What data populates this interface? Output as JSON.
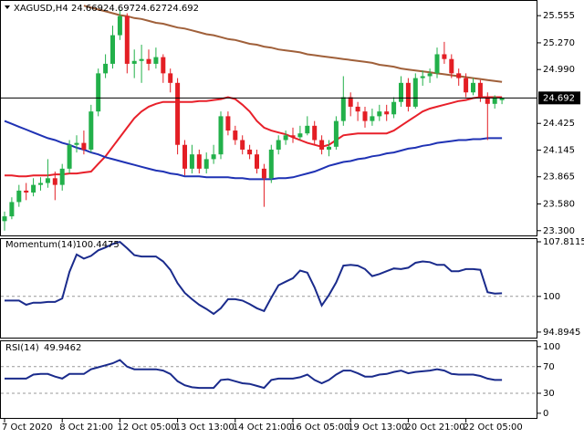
{
  "chart_data": [
    {
      "type": "candlestick",
      "title": "XAGUSD,H4",
      "categories": [
        "7 Oct 2020",
        null,
        null,
        null,
        null,
        null,
        null,
        null,
        "8 Oct 21:00",
        null,
        null,
        null,
        null,
        null,
        null,
        null,
        "12 Oct 05:00",
        null,
        null,
        null,
        null,
        null,
        null,
        null,
        "13 Oct 13:00",
        null,
        null,
        null,
        null,
        null,
        null,
        null,
        "14 Oct 21:00",
        null,
        null,
        null,
        null,
        null,
        null,
        null,
        "16 Oct 05:00",
        null,
        null,
        null,
        null,
        null,
        null,
        null,
        "19 Oct 13:00",
        null,
        null,
        null,
        null,
        null,
        null,
        null,
        "20 Oct 21:00",
        null,
        null,
        null,
        null,
        null,
        null,
        null,
        "22 Oct 05:00",
        null,
        null,
        null,
        null,
        null
      ],
      "candles": [
        [
          23.4,
          23.5,
          23.3,
          23.45
        ],
        [
          23.45,
          23.65,
          23.42,
          23.6
        ],
        [
          23.6,
          23.78,
          23.55,
          23.72
        ],
        [
          23.72,
          23.8,
          23.62,
          23.7
        ],
        [
          23.7,
          23.85,
          23.66,
          23.78
        ],
        [
          23.78,
          23.86,
          23.72,
          23.8
        ],
        [
          23.8,
          24.05,
          23.75,
          23.85
        ],
        [
          23.85,
          23.92,
          23.62,
          23.78
        ],
        [
          23.78,
          24.0,
          23.72,
          23.95
        ],
        [
          23.95,
          24.25,
          23.9,
          24.2
        ],
        [
          24.2,
          24.3,
          24.12,
          24.22
        ],
        [
          24.22,
          24.35,
          24.1,
          24.15
        ],
        [
          24.15,
          24.62,
          24.12,
          24.55
        ],
        [
          24.55,
          25.0,
          24.5,
          24.95
        ],
        [
          24.95,
          25.15,
          24.9,
          25.05
        ],
        [
          25.05,
          25.45,
          25.0,
          25.35
        ],
        [
          25.35,
          25.62,
          25.3,
          25.55
        ],
        [
          25.55,
          25.58,
          24.95,
          25.05
        ],
        [
          25.05,
          25.2,
          24.9,
          25.08
        ],
        [
          25.08,
          25.25,
          24.85,
          25.1
        ],
        [
          25.1,
          25.2,
          24.98,
          25.05
        ],
        [
          25.05,
          25.22,
          25.0,
          25.12
        ],
        [
          25.12,
          25.15,
          24.85,
          24.95
        ],
        [
          24.95,
          25.0,
          24.75,
          24.85
        ],
        [
          24.85,
          24.9,
          24.1,
          24.2
        ],
        [
          24.2,
          24.25,
          23.88,
          23.95
        ],
        [
          23.95,
          24.2,
          23.9,
          24.1
        ],
        [
          24.1,
          24.15,
          23.9,
          23.95
        ],
        [
          23.95,
          24.12,
          23.9,
          24.05
        ],
        [
          24.05,
          24.2,
          24.0,
          24.1
        ],
        [
          24.1,
          24.55,
          24.05,
          24.5
        ],
        [
          24.5,
          24.55,
          24.3,
          24.35
        ],
        [
          24.35,
          24.4,
          24.2,
          24.25
        ],
        [
          24.25,
          24.3,
          24.1,
          24.15
        ],
        [
          24.15,
          24.2,
          24.05,
          24.1
        ],
        [
          24.1,
          24.15,
          23.9,
          23.95
        ],
        [
          23.95,
          24.0,
          23.55,
          23.85
        ],
        [
          23.85,
          24.2,
          23.8,
          24.15
        ],
        [
          24.15,
          24.3,
          24.1,
          24.25
        ],
        [
          24.25,
          24.35,
          24.2,
          24.3
        ],
        [
          24.3,
          24.38,
          24.22,
          24.28
        ],
        [
          24.28,
          24.4,
          24.25,
          24.32
        ],
        [
          24.32,
          24.5,
          24.3,
          24.4
        ],
        [
          24.4,
          24.45,
          24.2,
          24.25
        ],
        [
          24.25,
          24.3,
          24.1,
          24.15
        ],
        [
          24.15,
          24.25,
          24.08,
          24.18
        ],
        [
          24.18,
          24.5,
          24.15,
          24.45
        ],
        [
          24.45,
          24.92,
          24.4,
          24.7
        ],
        [
          24.7,
          24.75,
          24.5,
          24.6
        ],
        [
          24.6,
          24.65,
          24.45,
          24.55
        ],
        [
          24.55,
          24.6,
          24.38,
          24.45
        ],
        [
          24.45,
          24.58,
          24.4,
          24.5
        ],
        [
          24.5,
          24.62,
          24.45,
          24.55
        ],
        [
          24.55,
          24.62,
          24.45,
          24.52
        ],
        [
          24.52,
          24.7,
          24.48,
          24.65
        ],
        [
          24.65,
          24.92,
          24.6,
          24.85
        ],
        [
          24.85,
          24.9,
          24.55,
          24.6
        ],
        [
          24.6,
          24.95,
          24.58,
          24.9
        ],
        [
          24.9,
          24.98,
          24.82,
          24.92
        ],
        [
          24.92,
          25.0,
          24.85,
          24.95
        ],
        [
          24.95,
          25.22,
          24.9,
          25.15
        ],
        [
          25.15,
          25.28,
          25.05,
          25.1
        ],
        [
          25.1,
          25.15,
          24.9,
          24.95
        ],
        [
          24.95,
          25.0,
          24.82,
          24.9
        ],
        [
          24.9,
          24.95,
          24.7,
          24.75
        ],
        [
          24.75,
          24.9,
          24.72,
          24.85
        ],
        [
          24.85,
          24.88,
          24.65,
          24.7
        ],
        [
          24.7,
          24.75,
          24.25,
          24.63
        ],
        [
          24.63,
          24.72,
          24.58,
          24.7
        ],
        [
          24.669,
          24.697,
          24.627,
          24.692
        ]
      ],
      "up_color": "#22b04a",
      "down_color": "#e31e24",
      "lines": [
        {
          "color": "#e8202a",
          "values": [
            23.88,
            23.88,
            23.87,
            23.87,
            23.88,
            23.88,
            23.88,
            23.89,
            23.89,
            23.9,
            23.9,
            23.91,
            23.92,
            24.0,
            24.08,
            24.18,
            24.28,
            24.38,
            24.48,
            24.55,
            24.6,
            24.63,
            24.65,
            24.65,
            24.65,
            24.65,
            24.65,
            24.66,
            24.66,
            24.67,
            24.68,
            24.7,
            24.68,
            24.62,
            24.55,
            24.45,
            24.38,
            24.35,
            24.33,
            24.31,
            24.28,
            24.25,
            24.22,
            24.2,
            24.18,
            24.2,
            24.25,
            24.3,
            24.31,
            24.32,
            24.32,
            24.32,
            24.32,
            24.32,
            24.35,
            24.4,
            24.45,
            24.5,
            24.55,
            24.58,
            24.6,
            24.62,
            24.64,
            24.66,
            24.67,
            24.69,
            24.7,
            24.7,
            24.7,
            24.7
          ]
        },
        {
          "color": "#1f32b4",
          "values": [
            24.45,
            24.42,
            24.39,
            24.36,
            24.33,
            24.3,
            24.27,
            24.25,
            24.22,
            24.2,
            24.17,
            24.15,
            24.12,
            24.1,
            24.07,
            24.05,
            24.03,
            24.01,
            23.99,
            23.97,
            23.95,
            23.93,
            23.92,
            23.9,
            23.89,
            23.87,
            23.87,
            23.87,
            23.86,
            23.86,
            23.86,
            23.86,
            23.85,
            23.85,
            23.84,
            23.84,
            23.84,
            23.84,
            23.85,
            23.85,
            23.86,
            23.88,
            23.9,
            23.92,
            23.95,
            23.98,
            24.0,
            24.02,
            24.03,
            24.05,
            24.06,
            24.08,
            24.09,
            24.11,
            24.12,
            24.14,
            24.16,
            24.17,
            24.19,
            24.2,
            24.22,
            24.23,
            24.24,
            24.25,
            24.25,
            24.26,
            24.26,
            24.27,
            24.27,
            24.27
          ]
        },
        {
          "color": "#a0603a",
          "values": [
            null,
            null,
            null,
            null,
            null,
            null,
            null,
            null,
            null,
            null,
            null,
            25.66,
            25.64,
            25.62,
            25.6,
            25.58,
            25.56,
            25.55,
            25.53,
            25.52,
            25.5,
            25.48,
            25.47,
            25.45,
            25.43,
            25.42,
            25.4,
            25.38,
            25.36,
            25.35,
            25.33,
            25.31,
            25.3,
            25.28,
            25.26,
            25.25,
            25.23,
            25.22,
            25.2,
            25.19,
            25.18,
            25.17,
            25.15,
            25.14,
            25.13,
            25.12,
            25.11,
            25.1,
            25.09,
            25.08,
            25.07,
            25.06,
            25.04,
            25.03,
            25.02,
            25.0,
            24.99,
            24.98,
            24.97,
            24.96,
            24.95,
            24.94,
            24.93,
            24.92,
            24.91,
            24.9,
            24.89,
            24.88,
            24.87,
            24.86
          ]
        }
      ],
      "ylim": [
        23.25,
        25.7
      ],
      "yticks": [
        25.555,
        {
          "value": 25.27,
          "label": "25.270"
        },
        {
          "value": 24.99,
          "label": "24.990"
        },
        24.425,
        24.145,
        23.865,
        {
          "value": 23.58,
          "label": "23.580"
        },
        {
          "value": 23.3,
          "label": "23.300"
        }
      ]
    },
    {
      "type": "line",
      "name": "Momentum(14)",
      "color": "#1a2b8c",
      "values": [
        99.4,
        99.4,
        99.4,
        98.8,
        99.1,
        99.1,
        99.2,
        99.2,
        99.7,
        103.5,
        106.0,
        105.4,
        105.8,
        106.6,
        107.0,
        107.5,
        107.8,
        106.9,
        105.9,
        105.7,
        105.7,
        105.7,
        105.0,
        103.8,
        101.9,
        100.5,
        99.6,
        98.8,
        98.2,
        97.5,
        98.3,
        99.6,
        99.6,
        99.4,
        98.9,
        98.3,
        97.9,
        99.8,
        101.6,
        102.1,
        102.6,
        103.7,
        103.4,
        101.3,
        98.7,
        100.2,
        102.0,
        104.4,
        104.5,
        104.4,
        103.9,
        102.9,
        103.2,
        103.6,
        104.0,
        103.9,
        104.1,
        104.8,
        105.0,
        104.9,
        104.5,
        104.5,
        103.6,
        103.6,
        103.9,
        103.9,
        103.8,
        100.6,
        100.4,
        100.4475
      ],
      "ylim": [
        94.1,
        108.2
      ],
      "yticks": [
        107.8115,
        100,
        94.8945
      ],
      "levels": [
        100
      ]
    },
    {
      "type": "line",
      "name": "RSI(14)",
      "color": "#1a2b8c",
      "values": [
        52,
        52,
        52,
        52,
        58,
        59,
        59,
        55,
        52,
        59,
        59,
        59,
        66,
        69,
        72,
        75,
        80,
        70,
        66,
        66,
        66,
        66,
        64,
        59,
        48,
        42,
        39,
        38,
        38,
        38,
        50,
        51,
        48,
        45,
        44,
        41,
        38,
        50,
        52,
        52,
        52,
        54,
        58,
        50,
        45,
        50,
        58,
        64,
        64,
        60,
        55,
        55,
        58,
        59,
        62,
        64,
        60,
        62,
        63,
        64,
        66,
        64,
        59,
        58,
        58,
        58,
        56,
        52,
        50,
        49.9462
      ],
      "ylim": [
        -7,
        108
      ],
      "yticks": [
        100,
        70,
        30,
        0
      ],
      "levels": [
        70,
        30
      ]
    }
  ]
}
